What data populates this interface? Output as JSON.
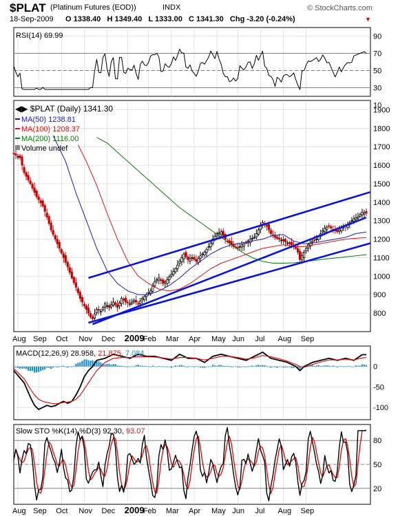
{
  "header": {
    "symbol": "$PLAT",
    "name": "(Platinum Futures (EOD))",
    "exchange": "INDX",
    "date": "18-Sep-2009",
    "ohlc": "O 1338.40   H 1349.40   L 1333.00   C 1341.30   Chg -3.20 (-0.24%)",
    "chg_marker": "▼",
    "brand": "© StockCharts.com"
  },
  "colors": {
    "price": "#000000",
    "down": "#cc0000",
    "channel": "#0a14d8",
    "ma50": "#1a1ab0",
    "ma100": "#e01010",
    "ma200": "#0a7a0a",
    "macd_hist": "#1e8fc7",
    "grid": "#c8c8c8",
    "ref": "#808080"
  },
  "chart_data": [
    {
      "type": "line",
      "title": "RSI(14) 69.99",
      "series": [
        {
          "name": "RSI(14)",
          "last": 69.99
        }
      ],
      "ylim": [
        20,
        100
      ],
      "y_ticks": [
        90,
        70,
        50,
        30,
        10
      ],
      "reference_lines": [
        70,
        50,
        30
      ]
    },
    {
      "type": "candlestick",
      "title": "$PLAT (Daily) 1341.30",
      "series": [
        {
          "name": "MA(50) 1238.81",
          "last": 1238.81
        },
        {
          "name": "MA(100) 1208.37",
          "last": 1208.37
        },
        {
          "name": "MA(200) 1116.00",
          "last": 1116.0
        },
        {
          "name": "Volume undef"
        }
      ],
      "ylim": [
        700,
        1950
      ],
      "y_ticks": [
        800,
        900,
        1000,
        1100,
        1200,
        1300,
        1400,
        1500,
        1600,
        1700,
        1800,
        1900
      ],
      "x_ticks": [
        "Aug",
        "Sep",
        "Oct",
        "Nov",
        "Dec",
        "2009",
        "Feb",
        "Mar",
        "Apr",
        "May",
        "Jun",
        "Jul",
        "Aug",
        "Sep"
      ],
      "price_path": [
        [
          0,
          1660
        ],
        [
          3,
          1640
        ],
        [
          5,
          1560
        ],
        [
          8,
          1500
        ],
        [
          11,
          1430
        ],
        [
          14,
          1380
        ],
        [
          16,
          1320
        ],
        [
          18,
          1250
        ],
        [
          20,
          1200
        ],
        [
          22,
          1150
        ],
        [
          24,
          1100
        ],
        [
          26,
          1050
        ],
        [
          28,
          990
        ],
        [
          30,
          940
        ],
        [
          32,
          880
        ],
        [
          34,
          840
        ],
        [
          36,
          800
        ],
        [
          37,
          780
        ],
        [
          38,
          770
        ],
        [
          40,
          820
        ],
        [
          42,
          810
        ],
        [
          44,
          850
        ],
        [
          46,
          830
        ],
        [
          48,
          860
        ],
        [
          50,
          830
        ],
        [
          52,
          880
        ],
        [
          54,
          860
        ],
        [
          56,
          850
        ],
        [
          58,
          870
        ],
        [
          60,
          850
        ],
        [
          62,
          880
        ],
        [
          64,
          900
        ],
        [
          66,
          920
        ],
        [
          68,
          970
        ],
        [
          70,
          990
        ],
        [
          72,
          960
        ],
        [
          74,
          980
        ],
        [
          76,
          1010
        ],
        [
          78,
          1040
        ],
        [
          80,
          1080
        ],
        [
          82,
          1120
        ],
        [
          84,
          1090
        ],
        [
          86,
          1100
        ],
        [
          88,
          1080
        ],
        [
          90,
          1110
        ],
        [
          92,
          1130
        ],
        [
          94,
          1160
        ],
        [
          96,
          1200
        ],
        [
          98,
          1230
        ],
        [
          100,
          1240
        ],
        [
          102,
          1200
        ],
        [
          104,
          1180
        ],
        [
          106,
          1160
        ],
        [
          108,
          1150
        ],
        [
          110,
          1170
        ],
        [
          112,
          1180
        ],
        [
          114,
          1200
        ],
        [
          116,
          1210
        ],
        [
          118,
          1250
        ],
        [
          120,
          1290
        ],
        [
          122,
          1270
        ],
        [
          124,
          1230
        ],
        [
          126,
          1210
        ],
        [
          128,
          1200
        ],
        [
          130,
          1190
        ],
        [
          132,
          1180
        ],
        [
          134,
          1170
        ],
        [
          136,
          1150
        ],
        [
          137,
          1130
        ],
        [
          138,
          1090
        ],
        [
          140,
          1130
        ],
        [
          142,
          1170
        ],
        [
          144,
          1190
        ],
        [
          146,
          1200
        ],
        [
          148,
          1230
        ],
        [
          150,
          1260
        ],
        [
          152,
          1270
        ],
        [
          154,
          1250
        ],
        [
          156,
          1240
        ],
        [
          158,
          1260
        ],
        [
          160,
          1270
        ],
        [
          162,
          1290
        ],
        [
          164,
          1310
        ],
        [
          166,
          1320
        ],
        [
          168,
          1345
        ],
        [
          170,
          1341.3
        ]
      ],
      "ma50_path": [
        [
          19,
          1760
        ],
        [
          25,
          1620
        ],
        [
          30,
          1450
        ],
        [
          35,
          1300
        ],
        [
          40,
          1150
        ],
        [
          45,
          1030
        ],
        [
          50,
          960
        ],
        [
          55,
          920
        ],
        [
          60,
          900
        ],
        [
          65,
          900
        ],
        [
          70,
          920
        ],
        [
          75,
          950
        ],
        [
          80,
          990
        ],
        [
          85,
          1040
        ],
        [
          90,
          1080
        ],
        [
          95,
          1120
        ],
        [
          100,
          1150
        ],
        [
          105,
          1170
        ],
        [
          110,
          1180
        ],
        [
          115,
          1190
        ],
        [
          120,
          1200
        ],
        [
          125,
          1220
        ],
        [
          130,
          1225
        ],
        [
          135,
          1190
        ],
        [
          140,
          1175
        ],
        [
          145,
          1180
        ],
        [
          150,
          1190
        ],
        [
          155,
          1200
        ],
        [
          160,
          1210
        ],
        [
          165,
          1230
        ],
        [
          170,
          1238.81
        ]
      ],
      "ma100_path": [
        [
          31,
          1710
        ],
        [
          35,
          1620
        ],
        [
          40,
          1490
        ],
        [
          45,
          1340
        ],
        [
          50,
          1200
        ],
        [
          55,
          1080
        ],
        [
          60,
          1000
        ],
        [
          65,
          960
        ],
        [
          70,
          930
        ],
        [
          75,
          920
        ],
        [
          80,
          930
        ],
        [
          85,
          960
        ],
        [
          90,
          1000
        ],
        [
          95,
          1040
        ],
        [
          100,
          1070
        ],
        [
          105,
          1090
        ],
        [
          110,
          1110
        ],
        [
          115,
          1130
        ],
        [
          120,
          1150
        ],
        [
          125,
          1160
        ],
        [
          130,
          1170
        ],
        [
          135,
          1160
        ],
        [
          140,
          1160
        ],
        [
          145,
          1170
        ],
        [
          150,
          1180
        ],
        [
          155,
          1190
        ],
        [
          160,
          1200
        ],
        [
          165,
          1205
        ],
        [
          170,
          1208.37
        ]
      ],
      "ma200_path": [
        [
          40,
          1750
        ],
        [
          45,
          1720
        ],
        [
          50,
          1670
        ],
        [
          55,
          1620
        ],
        [
          60,
          1570
        ],
        [
          65,
          1520
        ],
        [
          70,
          1470
        ],
        [
          75,
          1420
        ],
        [
          80,
          1370
        ],
        [
          85,
          1330
        ],
        [
          90,
          1290
        ],
        [
          95,
          1250
        ],
        [
          100,
          1210
        ],
        [
          105,
          1170
        ],
        [
          110,
          1130
        ],
        [
          115,
          1100
        ],
        [
          120,
          1080
        ],
        [
          125,
          1070
        ],
        [
          130,
          1070
        ],
        [
          135,
          1072
        ],
        [
          140,
          1078
        ],
        [
          145,
          1085
        ],
        [
          150,
          1092
        ],
        [
          155,
          1098
        ],
        [
          160,
          1104
        ],
        [
          165,
          1110
        ],
        [
          170,
          1116.0
        ]
      ],
      "channel_lines": [
        [
          [
            36,
            748
          ],
          [
            172,
            1178
          ]
        ],
        [
          [
            38,
            740
          ],
          [
            170,
            1317
          ]
        ],
        [
          [
            36,
            990
          ],
          [
            172,
            1455
          ]
        ]
      ]
    },
    {
      "type": "line",
      "title": "MACD(12,26,9) 28.958, 21.875, 7.084",
      "series": [
        {
          "name": "MACD",
          "last": 28.958,
          "path": [
            [
              0,
              -10
            ],
            [
              5,
              -40
            ],
            [
              8,
              -75
            ],
            [
              10,
              -95
            ],
            [
              12,
              -105
            ],
            [
              14,
              -100
            ],
            [
              16,
              -95
            ],
            [
              18,
              -98
            ],
            [
              20,
              -96
            ],
            [
              22,
              -90
            ],
            [
              24,
              -85
            ],
            [
              26,
              -90
            ],
            [
              28,
              -85
            ],
            [
              30,
              -70
            ],
            [
              32,
              -50
            ],
            [
              34,
              -25
            ],
            [
              36,
              -10
            ],
            [
              38,
              0
            ],
            [
              40,
              15
            ],
            [
              44,
              20
            ],
            [
              48,
              30
            ],
            [
              52,
              25
            ],
            [
              56,
              20
            ],
            [
              60,
              30
            ],
            [
              64,
              25
            ],
            [
              68,
              25
            ],
            [
              72,
              20
            ],
            [
              76,
              15
            ],
            [
              80,
              30
            ],
            [
              84,
              20
            ],
            [
              88,
              20
            ],
            [
              92,
              10
            ],
            [
              96,
              25
            ],
            [
              100,
              30
            ],
            [
              104,
              25
            ],
            [
              108,
              20
            ],
            [
              112,
              15
            ],
            [
              116,
              25
            ],
            [
              120,
              35
            ],
            [
              124,
              20
            ],
            [
              128,
              15
            ],
            [
              132,
              10
            ],
            [
              136,
              0
            ],
            [
              138,
              -10
            ],
            [
              140,
              0
            ],
            [
              144,
              10
            ],
            [
              148,
              15
            ],
            [
              152,
              20
            ],
            [
              156,
              15
            ],
            [
              160,
              20
            ],
            [
              164,
              15
            ],
            [
              168,
              29
            ],
            [
              170,
              28.958
            ]
          ]
        },
        {
          "name": "Signal",
          "last": 21.875,
          "path": [
            [
              0,
              -5
            ],
            [
              5,
              -30
            ],
            [
              8,
              -55
            ],
            [
              10,
              -70
            ],
            [
              12,
              -80
            ],
            [
              14,
              -85
            ],
            [
              16,
              -88
            ],
            [
              18,
              -90
            ],
            [
              20,
              -91
            ],
            [
              22,
              -90
            ],
            [
              24,
              -88
            ],
            [
              26,
              -87
            ],
            [
              28,
              -85
            ],
            [
              30,
              -80
            ],
            [
              32,
              -70
            ],
            [
              34,
              -55
            ],
            [
              36,
              -40
            ],
            [
              38,
              -25
            ],
            [
              40,
              -10
            ],
            [
              44,
              10
            ],
            [
              48,
              20
            ],
            [
              52,
              22
            ],
            [
              56,
              22
            ],
            [
              60,
              24
            ],
            [
              64,
              24
            ],
            [
              68,
              23
            ],
            [
              72,
              21
            ],
            [
              76,
              18
            ],
            [
              80,
              22
            ],
            [
              84,
              22
            ],
            [
              88,
              20
            ],
            [
              92,
              16
            ],
            [
              96,
              20
            ],
            [
              100,
              25
            ],
            [
              104,
              25
            ],
            [
              108,
              22
            ],
            [
              112,
              18
            ],
            [
              116,
              21
            ],
            [
              120,
              27
            ],
            [
              124,
              24
            ],
            [
              128,
              19
            ],
            [
              132,
              13
            ],
            [
              136,
              5
            ],
            [
              138,
              0
            ],
            [
              140,
              -2
            ],
            [
              144,
              5
            ],
            [
              148,
              11
            ],
            [
              152,
              16
            ],
            [
              156,
              16
            ],
            [
              160,
              18
            ],
            [
              164,
              16
            ],
            [
              168,
              21
            ],
            [
              170,
              21.875
            ]
          ]
        },
        {
          "name": "Histogram",
          "last": 7.084
        }
      ],
      "ylim": [
        -130,
        50
      ],
      "y_ticks": [
        0,
        -50,
        -100
      ]
    },
    {
      "type": "line",
      "title": "Slow STO %K(14) %D(3) 92.30, 93.07",
      "series": [
        {
          "name": "%K(14)",
          "last": 92.3
        },
        {
          "name": "%D(3)",
          "last": 93.07
        }
      ],
      "ylim": [
        0,
        100
      ],
      "y_ticks": [
        80,
        50,
        20
      ],
      "reference_lines": [
        80,
        50,
        20
      ],
      "x_ticks": [
        "Aug",
        "Sep",
        "Oct",
        "Nov",
        "Dec",
        "2009",
        "Feb",
        "Mar",
        "Apr",
        "May",
        "Jun",
        "Jul",
        "Aug",
        "Sep"
      ]
    }
  ]
}
